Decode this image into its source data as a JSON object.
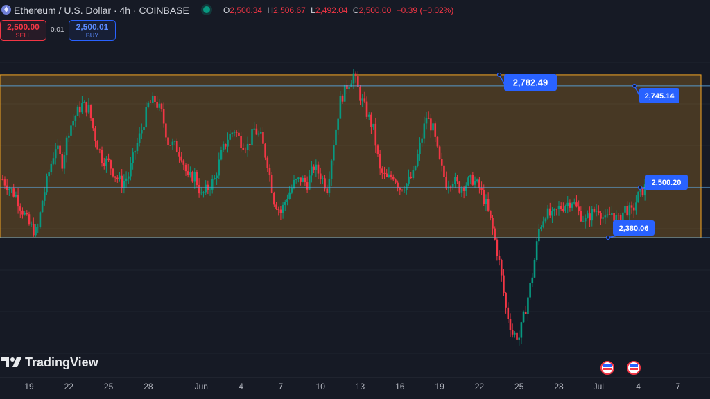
{
  "header": {
    "symbol_title": "Ethereum / U.S. Dollar · 4h · COINBASE",
    "ohlc": {
      "o_label": "O",
      "o_value": "2,500.34",
      "h_label": "H",
      "h_value": "2,506.67",
      "l_label": "L",
      "l_value": "2,492.04",
      "c_label": "C",
      "c_value": "2,500.00",
      "change": "−0.39 (−0.02%)"
    }
  },
  "trade": {
    "sell_price": "2,500.00",
    "sell_label": "SELL",
    "spread": "0.01",
    "buy_price": "2,500.01",
    "buy_label": "BUY"
  },
  "branding": {
    "logo_text": "TradingView"
  },
  "colors": {
    "up": "#089981",
    "down": "#f23645",
    "zone_border": "#f5a623",
    "level_line": "#5aa9e6",
    "callout": "#2962ff"
  },
  "chart_data": {
    "type": "candlestick",
    "title": "Ethereum / U.S. Dollar · 4h · COINBASE",
    "ylim": [
      1985,
      2935
    ],
    "x_ticks": [
      "19",
      "22",
      "25",
      "28",
      "Jun",
      "4",
      "7",
      "10",
      "13",
      "16",
      "19",
      "22",
      "25",
      "28",
      "Jul",
      "4",
      "7"
    ],
    "x_tick_days": [
      0,
      3,
      6,
      9,
      13,
      16,
      19,
      22,
      25,
      28,
      31,
      34,
      37,
      40,
      43,
      46,
      49
    ],
    "zone": {
      "low": 2380.06,
      "high": 2745.14,
      "start_day": -2,
      "end_day": 52
    },
    "levels": [
      {
        "value": 2745.14,
        "label": "2,745.14"
      },
      {
        "value": 2500.2,
        "label": "2,500.20"
      },
      {
        "value": 2380.06,
        "label": "2,380.06"
      }
    ],
    "high_marker": {
      "value": 2782.49,
      "label": "2,782.49"
    },
    "event_icons": 2,
    "series_anchors": [
      [
        -2,
        2520
      ],
      [
        -1,
        2480
      ],
      [
        0,
        2410
      ],
      [
        0.6,
        2390
      ],
      [
        1,
        2470
      ],
      [
        1.6,
        2550
      ],
      [
        2,
        2600
      ],
      [
        2.5,
        2560
      ],
      [
        3,
        2640
      ],
      [
        3.6,
        2680
      ],
      [
        4,
        2700
      ],
      [
        4.5,
        2690
      ],
      [
        5,
        2620
      ],
      [
        5.5,
        2570
      ],
      [
        6,
        2560
      ],
      [
        6.5,
        2530
      ],
      [
        7,
        2510
      ],
      [
        7.5,
        2530
      ],
      [
        8,
        2590
      ],
      [
        8.5,
        2640
      ],
      [
        9,
        2700
      ],
      [
        9.5,
        2710
      ],
      [
        10,
        2680
      ],
      [
        10.5,
        2610
      ],
      [
        11,
        2600
      ],
      [
        11.5,
        2580
      ],
      [
        12,
        2520
      ],
      [
        12.5,
        2530
      ],
      [
        13,
        2480
      ],
      [
        13.5,
        2500
      ],
      [
        14,
        2520
      ],
      [
        14.5,
        2580
      ],
      [
        15,
        2620
      ],
      [
        15.5,
        2640
      ],
      [
        16,
        2610
      ],
      [
        16.5,
        2600
      ],
      [
        17,
        2640
      ],
      [
        17.5,
        2620
      ],
      [
        18,
        2560
      ],
      [
        18.5,
        2470
      ],
      [
        19,
        2440
      ],
      [
        19.5,
        2480
      ],
      [
        20,
        2510
      ],
      [
        20.5,
        2520
      ],
      [
        21,
        2510
      ],
      [
        21.5,
        2550
      ],
      [
        22,
        2530
      ],
      [
        22.5,
        2500
      ],
      [
        23,
        2610
      ],
      [
        23.5,
        2710
      ],
      [
        24,
        2745
      ],
      [
        24.5,
        2772
      ],
      [
        25,
        2720
      ],
      [
        25.5,
        2680
      ],
      [
        26,
        2640
      ],
      [
        26.5,
        2540
      ],
      [
        27,
        2520
      ],
      [
        27.5,
        2530
      ],
      [
        28,
        2500
      ],
      [
        28.5,
        2510
      ],
      [
        29,
        2530
      ],
      [
        29.5,
        2600
      ],
      [
        30,
        2670
      ],
      [
        30.5,
        2640
      ],
      [
        31,
        2560
      ],
      [
        31.5,
        2510
      ],
      [
        32,
        2520
      ],
      [
        32.5,
        2500
      ],
      [
        33,
        2510
      ],
      [
        33.5,
        2520
      ],
      [
        34,
        2500
      ],
      [
        34.5,
        2460
      ],
      [
        35,
        2400
      ],
      [
        35.5,
        2320
      ],
      [
        36,
        2210
      ],
      [
        36.5,
        2150
      ],
      [
        37,
        2140
      ],
      [
        37.5,
        2210
      ],
      [
        38,
        2290
      ],
      [
        38.5,
        2400
      ],
      [
        39,
        2440
      ],
      [
        39.5,
        2430
      ],
      [
        40,
        2450
      ],
      [
        40.5,
        2460
      ],
      [
        41,
        2470
      ],
      [
        41.5,
        2440
      ],
      [
        42,
        2420
      ],
      [
        42.5,
        2440
      ],
      [
        43,
        2450
      ],
      [
        43.5,
        2420
      ],
      [
        44,
        2440
      ],
      [
        44.5,
        2420
      ],
      [
        45,
        2450
      ],
      [
        45.5,
        2440
      ],
      [
        46,
        2480
      ],
      [
        46.5,
        2500
      ]
    ]
  }
}
